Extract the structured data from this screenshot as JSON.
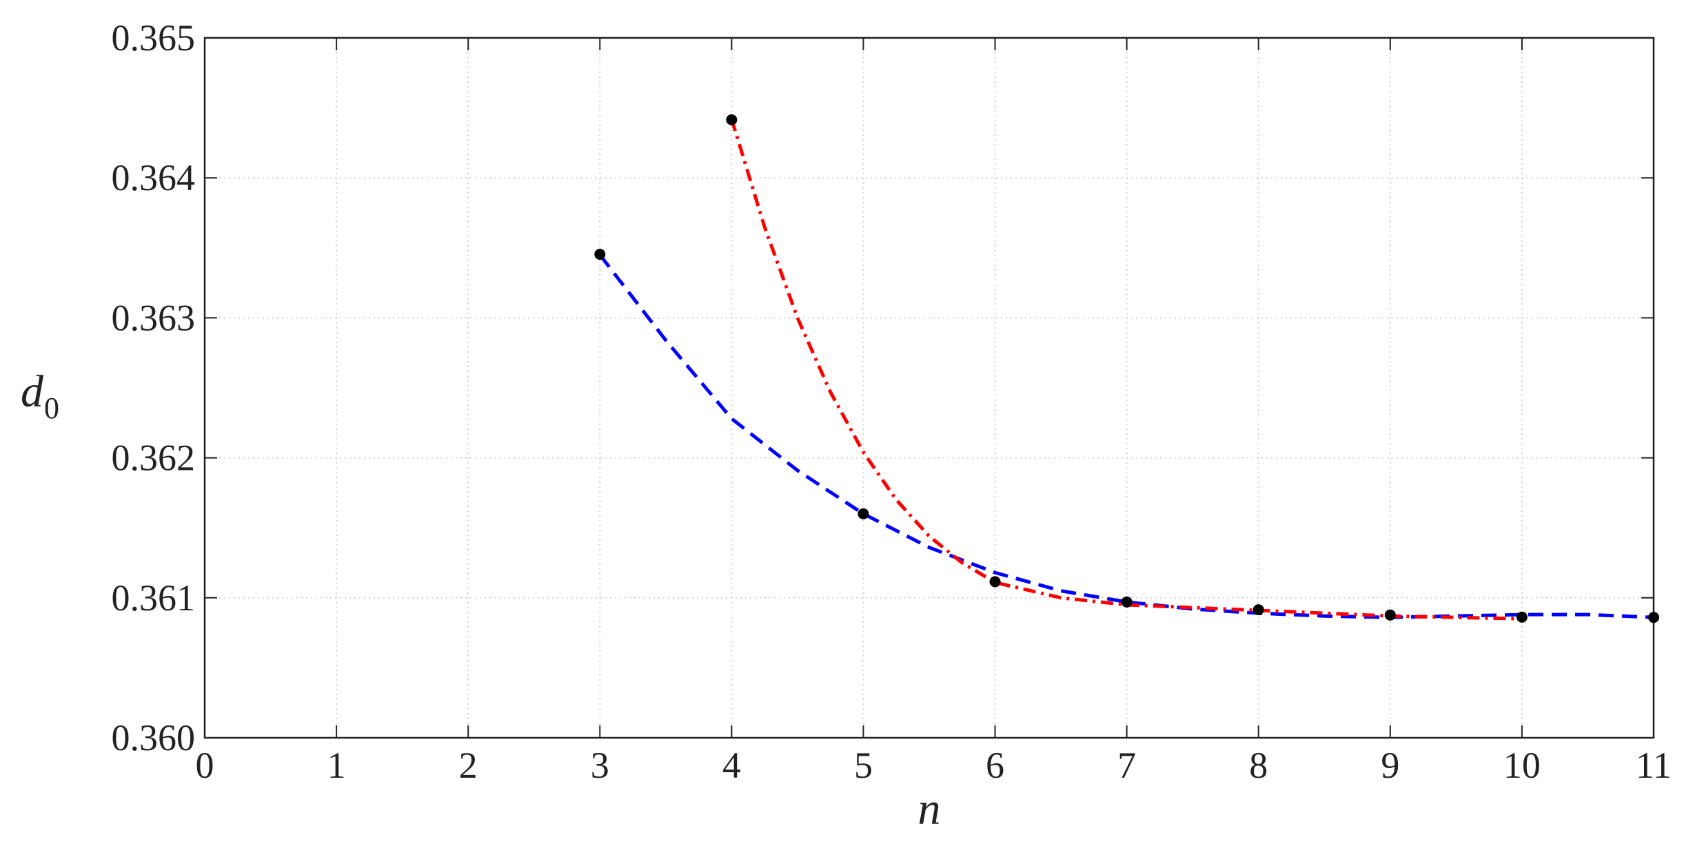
{
  "chart_data": {
    "type": "line",
    "xlabel": "n",
    "ylabel": {
      "main": "d",
      "sub": "0"
    },
    "xlim": [
      0,
      11
    ],
    "ylim": [
      0.36,
      0.365
    ],
    "xticks": [
      0,
      1,
      2,
      3,
      4,
      5,
      6,
      7,
      8,
      9,
      10,
      11
    ],
    "yticks": [
      {
        "value": 0.36,
        "label": "0.360"
      },
      {
        "value": 0.361,
        "label": "0.361"
      },
      {
        "value": 0.362,
        "label": "0.362"
      },
      {
        "value": 0.363,
        "label": "0.363"
      },
      {
        "value": 0.364,
        "label": "0.364"
      },
      {
        "value": 0.365,
        "label": "0.365"
      }
    ],
    "grid": true,
    "series": [
      {
        "style": "dashed",
        "color": "#0000ff",
        "x": [
          3,
          3.5,
          4,
          4.5,
          5,
          5.5,
          6,
          6.5,
          7,
          7.5,
          8,
          8.5,
          9,
          9.5,
          10,
          10.5,
          11
        ],
        "values": [
          0.36345,
          0.36284,
          0.36228,
          0.36191,
          0.3616,
          0.36136,
          0.36118,
          0.36105,
          0.36097,
          0.36092,
          0.36089,
          0.36087,
          0.36086,
          0.36087,
          0.36088,
          0.36088,
          0.36086
        ]
      },
      {
        "style": "dashdot",
        "color": "#ff0000",
        "x": [
          4,
          4.25,
          4.5,
          4.75,
          5,
          5.25,
          5.5,
          5.75,
          6,
          6.5,
          7,
          7.5,
          8,
          8.5,
          9,
          9.5,
          10
        ],
        "values": [
          0.36442,
          0.36365,
          0.363,
          0.36247,
          0.36204,
          0.3617,
          0.36144,
          0.36125,
          0.36111,
          0.361,
          0.36095,
          0.36093,
          0.36091,
          0.36089,
          0.36087,
          0.36086,
          0.36085
        ]
      },
      {
        "style": "markers",
        "color": "#000000",
        "x": [
          3,
          4,
          5,
          6,
          7,
          8,
          9,
          10,
          11
        ],
        "values": [
          0.363454,
          0.364415,
          0.3616,
          0.361115,
          0.36097,
          0.360915,
          0.360877,
          0.360862,
          0.36086
        ]
      }
    ]
  }
}
